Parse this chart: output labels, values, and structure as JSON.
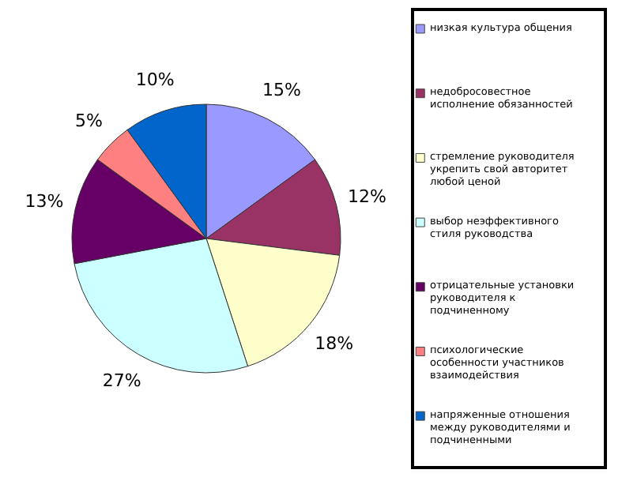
{
  "chart_data": {
    "type": "pie",
    "categories": [
      "низкая культура общения",
      "недобросовестное исполнение обязанностей",
      "стремление руководителя укрепить свой авторитет любой ценой",
      "выбор неэффективного стиля руководства",
      "отрицательные установки руководителя к подчиненному",
      "психологические особенности участников взаимодействия",
      "напряженные отношения между руководителями и подчиненными"
    ],
    "values": [
      15,
      12,
      18,
      27,
      13,
      5,
      10
    ],
    "value_labels": [
      "15%",
      "12%",
      "18%",
      "27%",
      "13%",
      "5%",
      "10%"
    ],
    "colors": [
      "#9999ff",
      "#993366",
      "#ffffcc",
      "#ccffff",
      "#660066",
      "#ff8080",
      "#0066cc"
    ],
    "legend": "right"
  }
}
